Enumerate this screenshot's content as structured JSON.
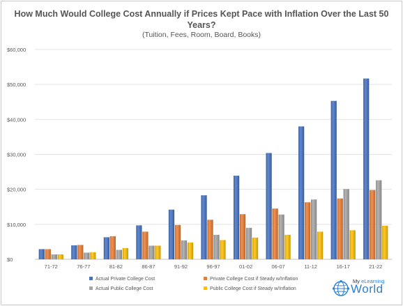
{
  "chart_data": {
    "type": "bar",
    "title": "How Much Would College Cost Annually if Prices Kept Pace with Inflation Over the Last 50 Years?",
    "subtitle": "(Tuition, Fees, Room, Board, Books)",
    "categories": [
      "71-72",
      "76-77",
      "81-82",
      "86-87",
      "91-92",
      "96-97",
      "01-02",
      "06-07",
      "11-12",
      "16-17",
      "21-22"
    ],
    "ylim": [
      0,
      60000
    ],
    "yticks": [
      0,
      10000,
      20000,
      30000,
      40000,
      50000,
      60000
    ],
    "ytick_labels": [
      "$0",
      "$10,000",
      "$20,000",
      "$30,000",
      "$40,000",
      "$50,000",
      "$60,000"
    ],
    "grid": true,
    "legend_position": "bottom",
    "series": [
      {
        "name": "Actual Private College Cost",
        "color": "#4472c4",
        "values": [
          2900,
          4000,
          6300,
          9700,
          14200,
          18300,
          23900,
          30400,
          38000,
          45300,
          51700
        ]
      },
      {
        "name": "Private College Cost if Steady w/Inflation",
        "color": "#ed7d31",
        "values": [
          2900,
          4100,
          6600,
          7900,
          9800,
          11300,
          12900,
          14500,
          16300,
          17400,
          19800
        ]
      },
      {
        "name": "Actual Public College Cost",
        "color": "#a5a5a5",
        "values": [
          1400,
          1900,
          2700,
          3900,
          5400,
          7000,
          9000,
          12800,
          17100,
          20100,
          22600
        ]
      },
      {
        "name": "Public College Cost if Steady w/Inflation",
        "color": "#ffc000",
        "values": [
          1400,
          2000,
          3200,
          3900,
          4800,
          5500,
          6200,
          7000,
          7900,
          8300,
          9600
        ]
      }
    ]
  },
  "logo": {
    "small": "My eLearning",
    "small_prefix": "My ",
    "small_accent": "eLearning",
    "big": "World"
  }
}
